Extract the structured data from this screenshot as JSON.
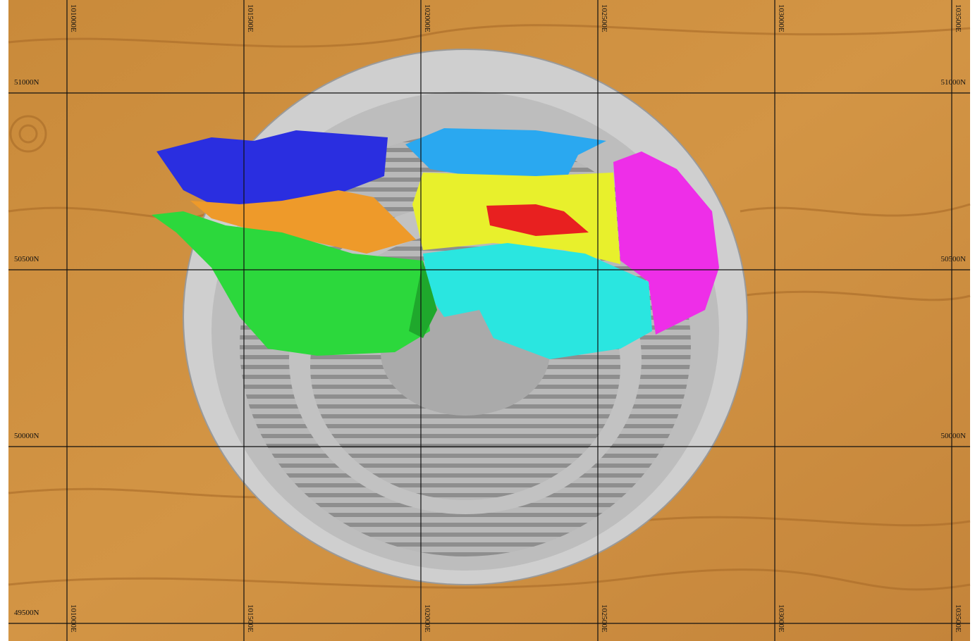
{
  "map": {
    "eastings": [
      "101000E",
      "101500E",
      "102000E",
      "102500E",
      "103000E",
      "103500E"
    ],
    "northings_left": [
      "51000N",
      "50500N",
      "50000N",
      "49500N"
    ],
    "northings_right": [
      "51000N",
      "50500N",
      "50000N"
    ]
  }
}
